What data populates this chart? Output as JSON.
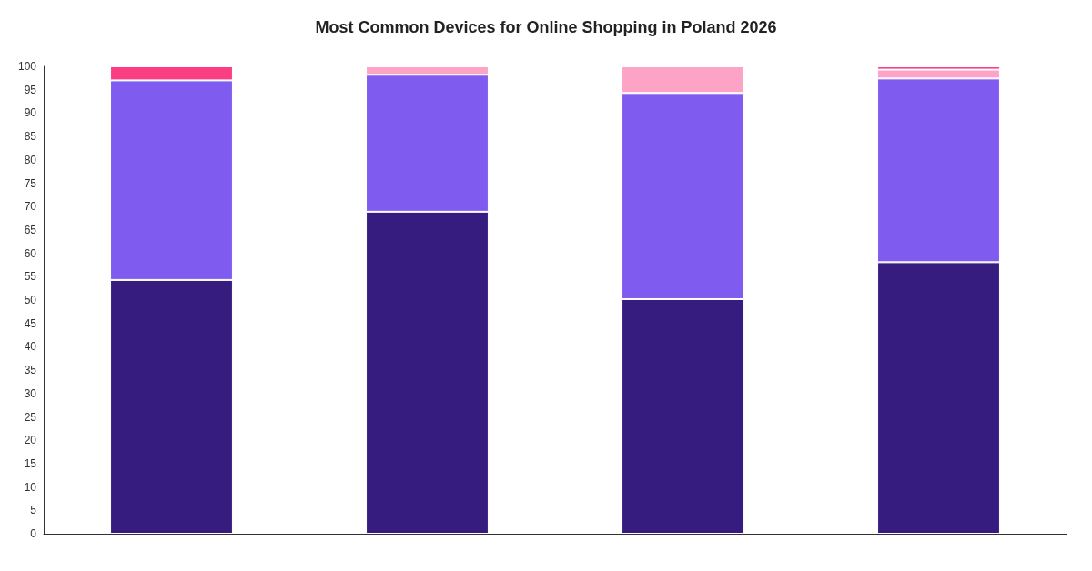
{
  "chart_data": {
    "type": "bar",
    "title": "Most Common Devices for Online Shopping in Poland 2026",
    "categories": [
      null,
      null,
      null,
      null
    ],
    "stacked": true,
    "grid": false,
    "series": [
      {
        "color": "#371c80",
        "values": [
          54.3,
          68.9,
          50.2,
          58.1
        ]
      },
      {
        "color": "#7f5cef",
        "values": [
          42.7,
          29.3,
          44.1,
          39.3
        ]
      },
      {
        "color": "#fda4c6",
        "values": [
          0,
          1.8,
          5.7,
          1.9
        ]
      },
      {
        "color": "#fb3d82",
        "values": [
          3.0,
          0,
          0,
          0.7
        ]
      }
    ],
    "ylim": [
      0,
      100
    ],
    "yticks": [
      0,
      5,
      10,
      15,
      20,
      25,
      30,
      35,
      40,
      45,
      50,
      55,
      60,
      65,
      70,
      75,
      80,
      85,
      90,
      95,
      100
    ]
  }
}
